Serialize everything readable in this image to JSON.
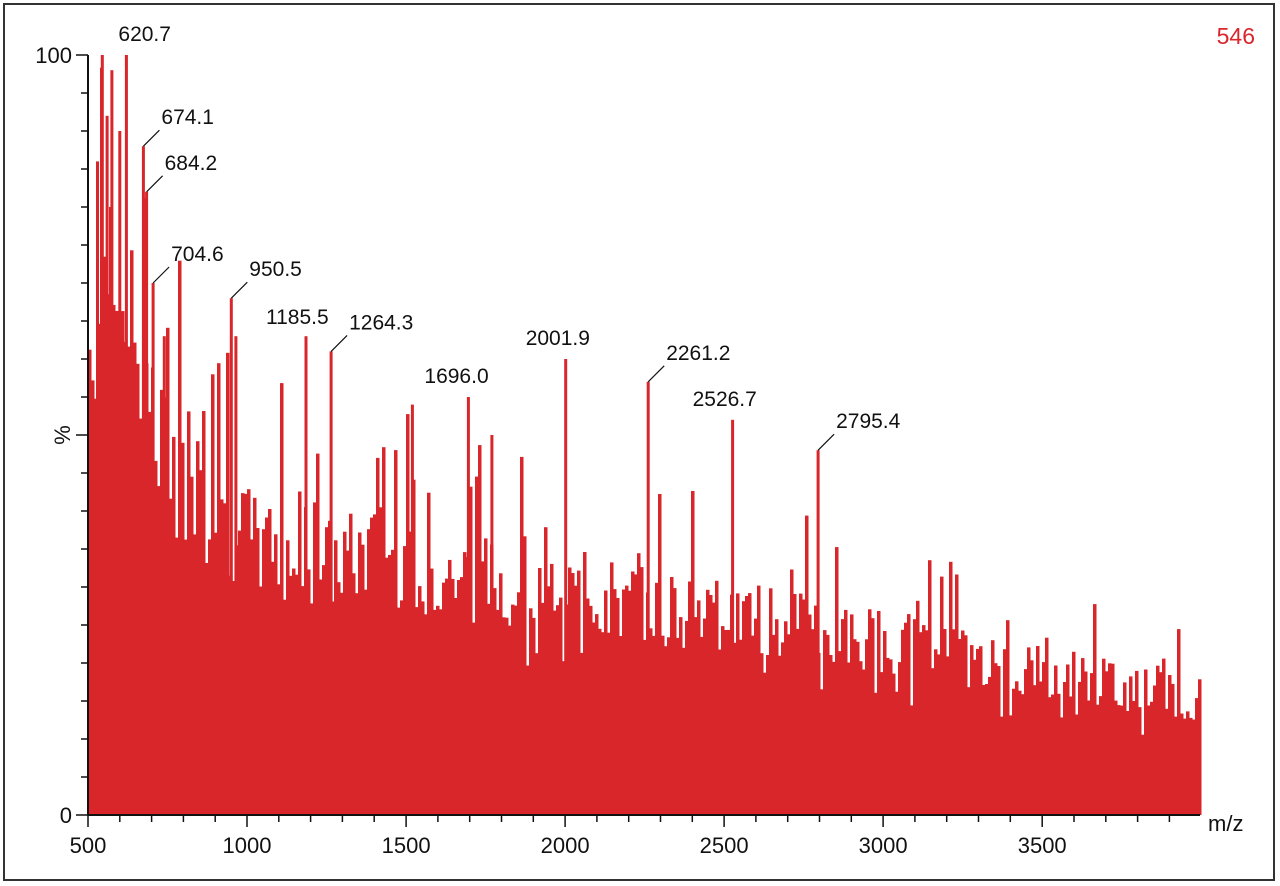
{
  "chart_data": {
    "type": "bar",
    "title": "",
    "xlabel": "m/z",
    "ylabel": "%",
    "corner_value": "546",
    "xlim": [
      500,
      3990
    ],
    "ylim": [
      0,
      100
    ],
    "x_ticks": [
      500,
      1000,
      1500,
      2000,
      2500,
      3000,
      3500
    ],
    "y_ticks": [
      0,
      100
    ],
    "bar_color": "#d9262b",
    "grid": false,
    "envelope": [
      [
        500,
        64
      ],
      [
        540,
        72
      ],
      [
        600,
        71
      ],
      [
        660,
        63
      ],
      [
        700,
        54
      ],
      [
        800,
        44
      ],
      [
        900,
        40
      ],
      [
        1000,
        38
      ],
      [
        1200,
        34
      ],
      [
        1400,
        36
      ],
      [
        1600,
        33
      ],
      [
        1800,
        32
      ],
      [
        2000,
        31
      ],
      [
        2200,
        29
      ],
      [
        2400,
        28
      ],
      [
        2600,
        27
      ],
      [
        2800,
        25
      ],
      [
        3000,
        24
      ],
      [
        3200,
        22
      ],
      [
        3400,
        20
      ],
      [
        3600,
        19
      ],
      [
        3800,
        17
      ],
      [
        3990,
        16
      ]
    ],
    "labeled_peaks": [
      {
        "mz": 620.7,
        "label": "620.7",
        "intensity": 100
      },
      {
        "mz": 674.1,
        "label": "674.1",
        "intensity": 88
      },
      {
        "mz": 684.2,
        "label": "684.2",
        "intensity": 82
      },
      {
        "mz": 704.6,
        "label": "704.6",
        "intensity": 70
      },
      {
        "mz": 950.5,
        "label": "950.5",
        "intensity": 68
      },
      {
        "mz": 1185.5,
        "label": "1185.5",
        "intensity": 63
      },
      {
        "mz": 1264.3,
        "label": "1264.3",
        "intensity": 61
      },
      {
        "mz": 1696.0,
        "label": "1696.0",
        "intensity": 55
      },
      {
        "mz": 2001.9,
        "label": "2001.9",
        "intensity": 60
      },
      {
        "mz": 2261.2,
        "label": "2261.2",
        "intensity": 57
      },
      {
        "mz": 2526.7,
        "label": "2526.7",
        "intensity": 52
      },
      {
        "mz": 2795.4,
        "label": "2795.4",
        "intensity": 48
      }
    ],
    "extra_peaks": [
      {
        "mz": 545,
        "intensity": 100
      },
      {
        "mz": 575,
        "intensity": 98
      },
      {
        "mz": 600,
        "intensity": 90
      },
      {
        "mz": 530,
        "intensity": 86
      },
      {
        "mz": 560,
        "intensity": 92
      },
      {
        "mz": 740,
        "intensity": 63
      },
      {
        "mz": 965,
        "intensity": 63
      },
      {
        "mz": 1520,
        "intensity": 54
      },
      {
        "mz": 1770,
        "intensity": 50
      }
    ]
  }
}
